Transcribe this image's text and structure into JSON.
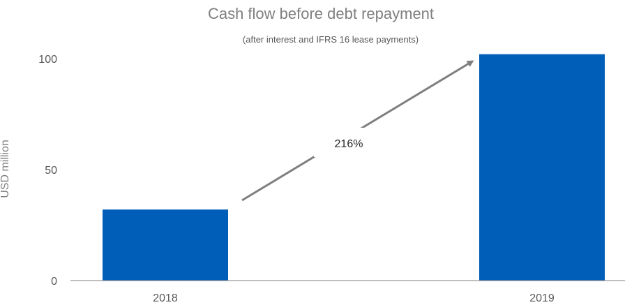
{
  "chart_data": {
    "type": "bar",
    "title": "Cash flow before debt repayment",
    "subtitle": "(after interest and IFRS 16 lease payments)",
    "xlabel": "",
    "ylabel": "USD million",
    "categories": [
      "2018",
      "2019"
    ],
    "values": [
      32,
      102
    ],
    "ylim": [
      0,
      100
    ],
    "yticks": [
      0,
      50,
      100
    ],
    "bar_color": "#005EB8",
    "axis_color": "#7f7f7f",
    "arrow_color": "#7f7f7f",
    "annotation": "216%",
    "grid": false,
    "legend": "none"
  }
}
